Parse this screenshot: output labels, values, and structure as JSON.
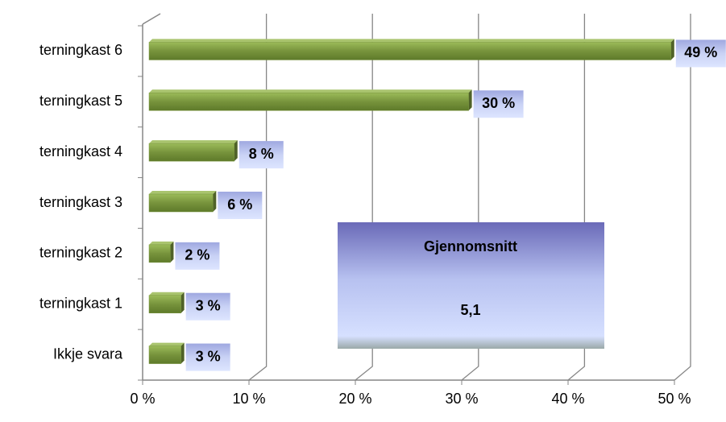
{
  "chart_data": {
    "type": "bar",
    "orientation": "horizontal",
    "categories": [
      "terningkast 6",
      "terningkast 5",
      "terningkast 4",
      "terningkast 3",
      "terningkast 2",
      "terningkast 1",
      "Ikkje svara"
    ],
    "values": [
      49,
      30,
      8,
      6,
      2,
      3,
      3
    ],
    "value_labels": [
      "49 %",
      "30 %",
      "8 %",
      "6 %",
      "2 %",
      "3 %",
      "3 %"
    ],
    "color": "#77933c",
    "xlim": [
      0,
      50
    ],
    "xticks": [
      {
        "value": 0,
        "label": "0 %"
      },
      {
        "value": 10,
        "label": "10 %"
      },
      {
        "value": 20,
        "label": "20 %"
      },
      {
        "value": 30,
        "label": "30 %"
      },
      {
        "value": 40,
        "label": "40 %"
      },
      {
        "value": 50,
        "label": "50 %"
      }
    ],
    "grid": true,
    "annotation": {
      "title": "Gjennomsnitt",
      "value": "5,1"
    }
  }
}
